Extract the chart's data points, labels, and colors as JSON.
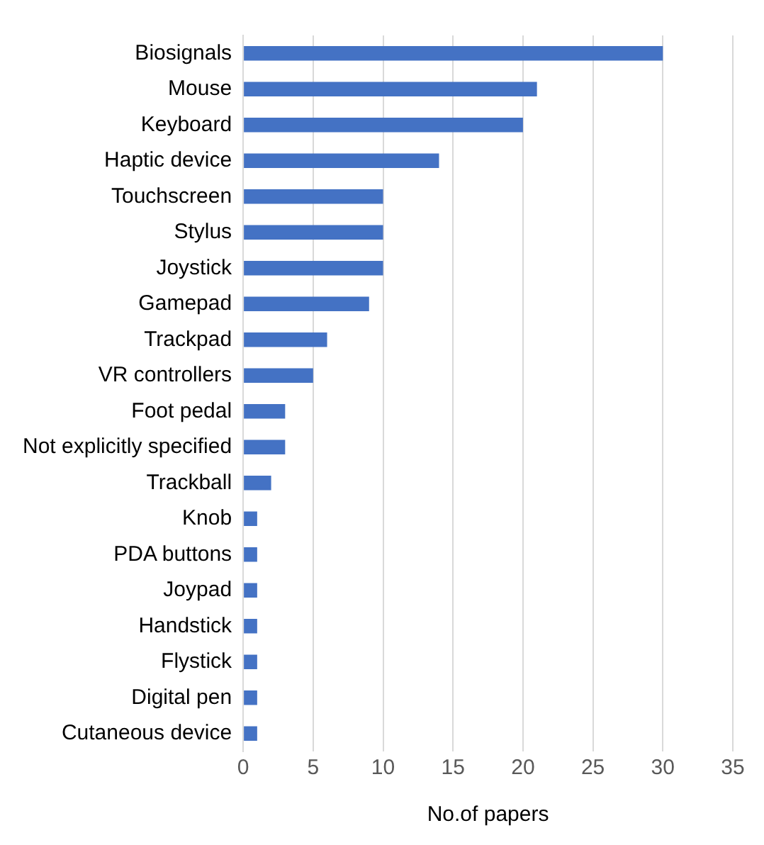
{
  "chart_data": {
    "type": "bar",
    "orientation": "horizontal",
    "xlabel": "No.of papers",
    "categories": [
      "Biosignals",
      "Mouse",
      "Keyboard",
      "Haptic device",
      "Touchscreen",
      "Stylus",
      "Joystick",
      "Gamepad",
      "Trackpad",
      "VR controllers",
      "Foot pedal",
      "Not explicitly specified",
      "Trackball",
      "Knob",
      "PDA buttons",
      "Joypad",
      "Handstick",
      "Flystick",
      "Digital pen",
      "Cutaneous device"
    ],
    "values": [
      30,
      21,
      20,
      14,
      10,
      10,
      10,
      9,
      6,
      5,
      3,
      3,
      2,
      1,
      1,
      1,
      1,
      1,
      1,
      1
    ],
    "color": "#4472c4",
    "xlim": [
      0,
      35
    ],
    "xticks": [
      0,
      5,
      10,
      15,
      20,
      25,
      30,
      35
    ],
    "grid": "x",
    "legend": false
  }
}
